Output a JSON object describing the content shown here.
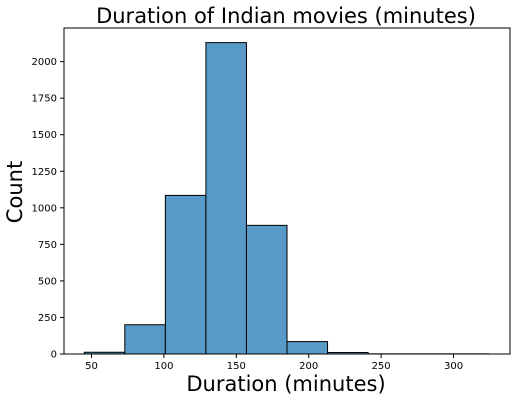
{
  "chart_data": {
    "type": "bar",
    "title": "Duration of Indian movies (minutes)",
    "xlabel": "Duration (minutes)",
    "ylabel": "Count",
    "bins": [
      {
        "start": 45,
        "end": 73,
        "count": 12
      },
      {
        "start": 73,
        "end": 101,
        "count": 200
      },
      {
        "start": 101,
        "end": 129,
        "count": 1085
      },
      {
        "start": 129,
        "end": 157,
        "count": 2130
      },
      {
        "start": 157,
        "end": 185,
        "count": 880
      },
      {
        "start": 185,
        "end": 213,
        "count": 85
      },
      {
        "start": 213,
        "end": 241,
        "count": 10
      },
      {
        "start": 241,
        "end": 269,
        "count": 1
      },
      {
        "start": 269,
        "end": 297,
        "count": 1
      },
      {
        "start": 297,
        "end": 325,
        "count": 1
      }
    ],
    "xlim": [
      31,
      339
    ],
    "ylim": [
      0,
      2230
    ],
    "xticks": [
      "50",
      "100",
      "150",
      "200",
      "250",
      "300"
    ],
    "yticks": [
      "0",
      "250",
      "500",
      "750",
      "1000",
      "1250",
      "1500",
      "1750",
      "2000"
    ],
    "grid": false,
    "bar_color": "#5799c7",
    "edge_color": "#000000"
  }
}
